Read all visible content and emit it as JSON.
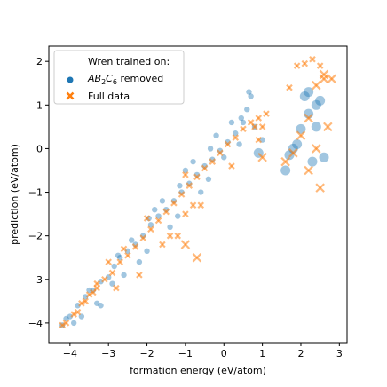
{
  "chart_data": {
    "type": "scatter",
    "xlabel": "formation energy (eV/atom)",
    "ylabel": "prediction (eV/atom)",
    "xlim": [
      -4.55,
      3.2
    ],
    "ylim": [
      -4.45,
      2.35
    ],
    "xticks": [
      -4,
      -3,
      -2,
      -1,
      0,
      1,
      2,
      3
    ],
    "yticks": [
      -4,
      -3,
      -2,
      -1,
      0,
      1,
      2
    ],
    "xtick_labels": [
      "−4",
      "−3",
      "−2",
      "−1",
      "0",
      "1",
      "2",
      "3"
    ],
    "ytick_labels": [
      "−4",
      "−3",
      "−2",
      "−1",
      "0",
      "1",
      "2"
    ],
    "grid": false,
    "legend": {
      "title": "Wren trained on:",
      "placement": "top-left",
      "entries": [
        {
          "marker": "circle",
          "label_main": "AB",
          "sub1": "2",
          "mid": "C",
          "sub2": "6",
          "tail": " removed"
        },
        {
          "marker": "cross",
          "label": "Full data"
        }
      ]
    },
    "colors": {
      "removed": "#1f77b4",
      "full": "#ff7f0e"
    },
    "series": [
      {
        "name": "AB2C6 removed",
        "marker": "circle",
        "points": [
          [
            -4.2,
            -4.05
          ],
          [
            -4.0,
            -3.85
          ],
          [
            -3.8,
            -3.6
          ],
          [
            -3.6,
            -3.4
          ],
          [
            -3.4,
            -3.25
          ],
          [
            -3.2,
            -3.05
          ],
          [
            -3.0,
            -2.95
          ],
          [
            -2.85,
            -2.7
          ],
          [
            -2.7,
            -2.5
          ],
          [
            -2.5,
            -2.35
          ],
          [
            -2.3,
            -2.2
          ],
          [
            -2.1,
            -2.0
          ],
          [
            -1.9,
            -1.75
          ],
          [
            -1.7,
            -1.55
          ],
          [
            -1.5,
            -1.4
          ],
          [
            -1.3,
            -1.2
          ],
          [
            -1.1,
            -1.0
          ],
          [
            -0.9,
            -0.8
          ],
          [
            -0.7,
            -0.6
          ],
          [
            -0.5,
            -0.4
          ],
          [
            -0.3,
            -0.25
          ],
          [
            -0.1,
            -0.05
          ],
          [
            0.1,
            0.15
          ],
          [
            0.3,
            0.35
          ],
          [
            0.5,
            0.6
          ],
          [
            0.6,
            0.9
          ],
          [
            0.7,
            1.2
          ],
          [
            0.65,
            1.3
          ],
          [
            -2.6,
            -2.9
          ],
          [
            -3.2,
            -3.6
          ],
          [
            -2.0,
            -2.35
          ],
          [
            -1.2,
            -1.55
          ],
          [
            -0.4,
            -0.7
          ],
          [
            0.0,
            -0.2
          ],
          [
            0.4,
            0.1
          ],
          [
            -1.6,
            -1.2
          ],
          [
            -2.4,
            -2.1
          ],
          [
            -0.8,
            -0.3
          ],
          [
            -0.2,
            0.3
          ],
          [
            0.2,
            0.6
          ],
          [
            -1.0,
            -0.5
          ],
          [
            -1.8,
            -1.4
          ],
          [
            2.2,
            1.3
          ],
          [
            2.4,
            1.0
          ],
          [
            2.1,
            1.2
          ],
          [
            2.5,
            1.1
          ],
          [
            1.6,
            -0.5
          ],
          [
            1.8,
            0.0
          ],
          [
            2.4,
            0.5
          ],
          [
            2.3,
            -0.3
          ],
          [
            2.6,
            -0.2
          ],
          [
            1.9,
            0.1
          ],
          [
            2.0,
            0.45
          ],
          [
            1.7,
            -0.15
          ],
          [
            2.2,
            0.8
          ],
          [
            0.9,
            -0.1
          ],
          [
            1.0,
            0.2
          ],
          [
            0.8,
            0.5
          ],
          [
            -3.7,
            -3.85
          ],
          [
            -3.9,
            -4.0
          ],
          [
            -3.3,
            -3.55
          ],
          [
            -2.9,
            -3.1
          ],
          [
            -2.2,
            -2.6
          ],
          [
            -1.4,
            -1.8
          ],
          [
            -0.6,
            -1.0
          ],
          [
            -4.1,
            -3.9
          ],
          [
            -3.5,
            -3.25
          ],
          [
            -2.75,
            -2.45
          ],
          [
            -1.95,
            -1.6
          ],
          [
            -1.15,
            -0.85
          ],
          [
            -0.35,
            0.0
          ],
          [
            0.45,
            0.7
          ]
        ]
      },
      {
        "name": "Full data",
        "marker": "cross",
        "points": [
          [
            -4.1,
            -4.0
          ],
          [
            -3.9,
            -3.8
          ],
          [
            -3.7,
            -3.55
          ],
          [
            -3.5,
            -3.35
          ],
          [
            -3.3,
            -3.2
          ],
          [
            -3.1,
            -3.0
          ],
          [
            -2.9,
            -2.85
          ],
          [
            -2.7,
            -2.6
          ],
          [
            -2.5,
            -2.45
          ],
          [
            -2.3,
            -2.25
          ],
          [
            -2.1,
            -2.05
          ],
          [
            -1.9,
            -1.85
          ],
          [
            -1.7,
            -1.65
          ],
          [
            -1.5,
            -1.45
          ],
          [
            -1.3,
            -1.25
          ],
          [
            -1.1,
            -1.05
          ],
          [
            -0.9,
            -0.85
          ],
          [
            -0.7,
            -0.65
          ],
          [
            -0.5,
            -0.45
          ],
          [
            -0.3,
            -0.3
          ],
          [
            -0.1,
            -0.1
          ],
          [
            0.1,
            0.1
          ],
          [
            0.3,
            0.25
          ],
          [
            0.5,
            0.45
          ],
          [
            0.7,
            0.6
          ],
          [
            0.8,
            0.5
          ],
          [
            0.9,
            0.2
          ],
          [
            1.0,
            -0.2
          ],
          [
            -3.0,
            -2.6
          ],
          [
            -2.0,
            -1.6
          ],
          [
            -1.0,
            -0.6
          ],
          [
            -0.6,
            -1.3
          ],
          [
            -1.4,
            -2.0
          ],
          [
            -2.2,
            -2.9
          ],
          [
            -1.0,
            -1.5
          ],
          [
            -1.6,
            -2.2
          ],
          [
            -3.3,
            -3.1
          ],
          [
            -2.6,
            -2.3
          ],
          [
            -0.8,
            -1.3
          ],
          [
            0.2,
            -0.4
          ],
          [
            -1.0,
            -2.2
          ],
          [
            -1.2,
            -2.0
          ],
          [
            -0.7,
            -2.5
          ],
          [
            -2.8,
            -3.2
          ],
          [
            1.7,
            1.4
          ],
          [
            1.9,
            1.9
          ],
          [
            2.1,
            1.95
          ],
          [
            2.3,
            2.05
          ],
          [
            2.5,
            1.9
          ],
          [
            2.6,
            1.6
          ],
          [
            2.8,
            1.6
          ],
          [
            2.6,
            1.7
          ],
          [
            2.4,
            1.45
          ],
          [
            2.2,
            0.7
          ],
          [
            2.4,
            0.0
          ],
          [
            2.7,
            0.5
          ],
          [
            2.2,
            -0.5
          ],
          [
            2.5,
            -0.9
          ],
          [
            1.6,
            -0.3
          ],
          [
            1.8,
            -0.1
          ],
          [
            2.0,
            0.3
          ],
          [
            1.1,
            0.8
          ],
          [
            1.0,
            0.5
          ],
          [
            0.9,
            0.7
          ],
          [
            -4.2,
            -4.05
          ],
          [
            -3.8,
            -3.75
          ],
          [
            -3.6,
            -3.5
          ],
          [
            -3.4,
            -3.3
          ]
        ]
      }
    ]
  }
}
